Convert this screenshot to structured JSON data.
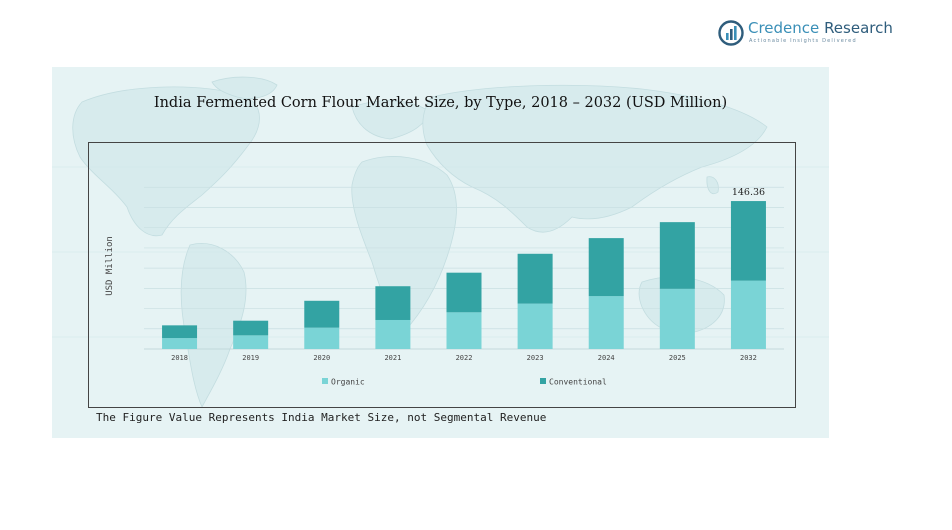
{
  "brand": {
    "name_first": "Credence",
    "name_second": "Research",
    "tagline": "Actionable Insights Delivered"
  },
  "chart_data": {
    "type": "bar",
    "stacked": true,
    "title": "India Fermented Corn Flour Market Size, by Type, 2018 – 2032 (USD Million)",
    "ylabel": "USD Million",
    "xlabel": "",
    "categories": [
      "2018",
      "2019",
      "2020",
      "2021",
      "2022",
      "2023",
      "2024",
      "2025",
      "2032"
    ],
    "series": [
      {
        "name": "Organic",
        "color": "#7ad4d6",
        "values": [
          10.8,
          13.5,
          21.1,
          28.7,
          36.3,
          44.9,
          52.3,
          59.5,
          67.6
        ]
      },
      {
        "name": "Conventional",
        "color": "#33a3a3",
        "values": [
          12.6,
          14.5,
          26.6,
          33.4,
          39.2,
          49.3,
          57.4,
          66.0,
          78.76
        ]
      }
    ],
    "annotations": [
      {
        "category": "2032",
        "text": "146.36"
      }
    ],
    "ylim": [
      0,
      185
    ],
    "grid": true,
    "legend": "bottom",
    "footnote": "The Figure Value Represents India Market Size, not Segmental Revenue"
  }
}
